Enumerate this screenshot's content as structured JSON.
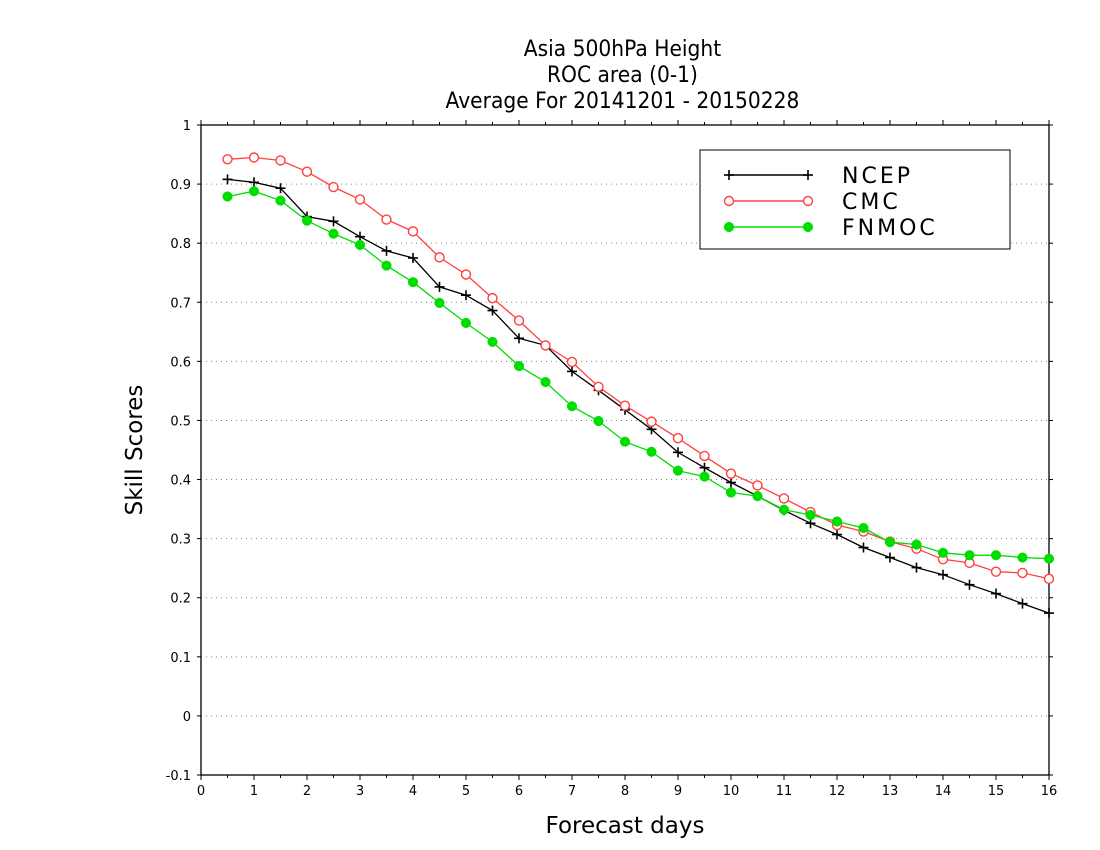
{
  "chart_data": {
    "type": "line",
    "title": [
      "Asia 500hPa Height",
      "ROC area (0-1)",
      "Average For 20141201 - 20150228"
    ],
    "xlabel": "Forecast days",
    "ylabel": "Skill Scores",
    "xlim": [
      0,
      16
    ],
    "ylim": [
      -0.1,
      1
    ],
    "x_ticks": [
      0,
      1,
      2,
      3,
      4,
      5,
      6,
      7,
      8,
      9,
      10,
      11,
      12,
      13,
      14,
      15,
      16
    ],
    "y_ticks": [
      -0.1,
      0,
      0.1,
      0.2,
      0.3,
      0.4,
      0.5,
      0.6,
      0.7,
      0.8,
      0.9,
      1
    ],
    "y_tick_labels": [
      "-0.1",
      "0",
      "0.1",
      "0.2",
      "0.3",
      "0.4",
      "0.5",
      "0.6",
      "0.7",
      "0.8",
      "0.9",
      "1"
    ],
    "grid": "horizontal dotted",
    "legend_position": "top-right",
    "x": [
      0.5,
      1,
      1.5,
      2,
      2.5,
      3,
      3.5,
      4,
      4.5,
      5,
      5.5,
      6,
      6.5,
      7,
      7.5,
      8,
      8.5,
      9,
      9.5,
      10,
      10.5,
      11,
      11.5,
      12,
      12.5,
      13,
      13.5,
      14,
      14.5,
      15,
      15.5,
      16
    ],
    "series": [
      {
        "name": "NCEP",
        "color": "#000000",
        "marker": "plus",
        "values": [
          0.908,
          0.903,
          0.893,
          0.845,
          0.837,
          0.811,
          0.787,
          0.775,
          0.726,
          0.712,
          0.686,
          0.639,
          0.627,
          0.583,
          0.551,
          0.518,
          0.485,
          0.446,
          0.42,
          0.395,
          0.372,
          0.348,
          0.326,
          0.307,
          0.285,
          0.268,
          0.251,
          0.239,
          0.222,
          0.207,
          0.19,
          0.174
        ]
      },
      {
        "name": "CMC",
        "color": "#ff4040",
        "marker": "open-circle",
        "values": [
          0.942,
          0.945,
          0.94,
          0.921,
          0.895,
          0.874,
          0.84,
          0.82,
          0.776,
          0.747,
          0.707,
          0.669,
          0.627,
          0.599,
          0.557,
          0.525,
          0.498,
          0.47,
          0.44,
          0.41,
          0.39,
          0.368,
          0.345,
          0.323,
          0.312,
          0.295,
          0.283,
          0.265,
          0.259,
          0.244,
          0.242,
          0.232
        ]
      },
      {
        "name": "FNMOC",
        "color": "#00dd00",
        "marker": "filled-circle",
        "values": [
          0.879,
          0.888,
          0.872,
          0.838,
          0.816,
          0.797,
          0.762,
          0.734,
          0.699,
          0.665,
          0.633,
          0.592,
          0.565,
          0.524,
          0.499,
          0.464,
          0.447,
          0.415,
          0.405,
          0.378,
          0.372,
          0.349,
          0.34,
          0.329,
          0.318,
          0.294,
          0.29,
          0.276,
          0.272,
          0.272,
          0.268,
          0.266
        ]
      }
    ]
  }
}
